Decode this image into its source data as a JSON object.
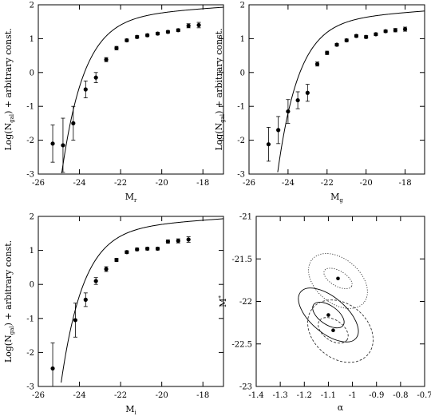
{
  "chart_data": [
    {
      "type": "scatter",
      "panel": "Mr",
      "xlabel_main": "M",
      "xlabel_sub": "r",
      "ylabel_pre": "Log(N",
      "ylabel_sub": "gal",
      "ylabel_post": ") + arbitrary const.",
      "xlim": [
        -26,
        -17
      ],
      "ylim": [
        -3,
        2
      ],
      "xticks": [
        -26,
        -24,
        -22,
        -20,
        -18
      ],
      "yticks": [
        -3,
        -2,
        -1,
        0,
        1,
        2
      ],
      "points": [
        {
          "x": -25.3,
          "y": -2.1,
          "err": 0.55
        },
        {
          "x": -24.8,
          "y": -2.15,
          "err": 0.8
        },
        {
          "x": -24.3,
          "y": -1.5,
          "err": 0.5
        },
        {
          "x": -23.7,
          "y": -0.5,
          "err": 0.25
        },
        {
          "x": -23.2,
          "y": -0.15,
          "err": 0.15
        },
        {
          "x": -22.7,
          "y": 0.38,
          "err": 0.06
        },
        {
          "x": -22.2,
          "y": 0.72,
          "err": 0.05
        },
        {
          "x": -21.7,
          "y": 0.95,
          "err": 0.04
        },
        {
          "x": -21.2,
          "y": 1.05,
          "err": 0.04
        },
        {
          "x": -20.7,
          "y": 1.1,
          "err": 0.04
        },
        {
          "x": -20.2,
          "y": 1.15,
          "err": 0.04
        },
        {
          "x": -19.7,
          "y": 1.2,
          "err": 0.04
        },
        {
          "x": -19.2,
          "y": 1.25,
          "err": 0.04
        },
        {
          "x": -18.7,
          "y": 1.38,
          "err": 0.06
        },
        {
          "x": -18.2,
          "y": 1.4,
          "err": 0.08
        }
      ],
      "fit": {
        "mstar": -22.3,
        "alpha": -1.1,
        "norm": 1.72
      }
    },
    {
      "type": "scatter",
      "panel": "Mg",
      "xlabel_main": "M",
      "xlabel_sub": "g",
      "ylabel_pre": "Log(N",
      "ylabel_sub": "gal",
      "ylabel_post": ") + arbitrary const.",
      "xlim": [
        -26,
        -17
      ],
      "ylim": [
        -3,
        2
      ],
      "xticks": [
        -26,
        -24,
        -22,
        -20,
        -18
      ],
      "yticks": [
        -3,
        -2,
        -1,
        0,
        1,
        2
      ],
      "points": [
        {
          "x": -25.0,
          "y": -2.12,
          "err": 0.5
        },
        {
          "x": -24.5,
          "y": -1.7,
          "err": 0.4
        },
        {
          "x": -24.0,
          "y": -1.15,
          "err": 0.35
        },
        {
          "x": -23.5,
          "y": -0.82,
          "err": 0.25
        },
        {
          "x": -23.0,
          "y": -0.6,
          "err": 0.25
        },
        {
          "x": -22.5,
          "y": 0.25,
          "err": 0.06
        },
        {
          "x": -22.0,
          "y": 0.58,
          "err": 0.05
        },
        {
          "x": -21.5,
          "y": 0.82,
          "err": 0.04
        },
        {
          "x": -21.0,
          "y": 0.95,
          "err": 0.04
        },
        {
          "x": -20.5,
          "y": 1.08,
          "err": 0.04
        },
        {
          "x": -20.0,
          "y": 1.05,
          "err": 0.04
        },
        {
          "x": -19.5,
          "y": 1.13,
          "err": 0.04
        },
        {
          "x": -19.0,
          "y": 1.22,
          "err": 0.04
        },
        {
          "x": -18.5,
          "y": 1.25,
          "err": 0.05
        },
        {
          "x": -18.0,
          "y": 1.28,
          "err": 0.06
        }
      ],
      "fit": {
        "mstar": -22.0,
        "alpha": -1.1,
        "norm": 1.62
      }
    },
    {
      "type": "scatter",
      "panel": "Mi",
      "xlabel_main": "M",
      "xlabel_sub": "i",
      "ylabel_pre": "Log(N",
      "ylabel_sub": "gal",
      "ylabel_post": ") + arbitrary const.",
      "xlim": [
        -26,
        -17
      ],
      "ylim": [
        -3,
        2
      ],
      "xticks": [
        -26,
        -24,
        -22,
        -20,
        -18
      ],
      "yticks": [
        -3,
        -2,
        -1,
        0,
        1,
        2
      ],
      "points": [
        {
          "x": -25.3,
          "y": -2.47,
          "err": 0.75
        },
        {
          "x": -24.2,
          "y": -1.05,
          "err": 0.5
        },
        {
          "x": -23.7,
          "y": -0.45,
          "err": 0.2
        },
        {
          "x": -23.2,
          "y": 0.1,
          "err": 0.1
        },
        {
          "x": -22.7,
          "y": 0.45,
          "err": 0.07
        },
        {
          "x": -22.2,
          "y": 0.72,
          "err": 0.05
        },
        {
          "x": -21.7,
          "y": 0.95,
          "err": 0.04
        },
        {
          "x": -21.2,
          "y": 1.03,
          "err": 0.04
        },
        {
          "x": -20.7,
          "y": 1.05,
          "err": 0.04
        },
        {
          "x": -20.2,
          "y": 1.05,
          "err": 0.04
        },
        {
          "x": -19.7,
          "y": 1.26,
          "err": 0.05
        },
        {
          "x": -19.2,
          "y": 1.28,
          "err": 0.06
        },
        {
          "x": -18.7,
          "y": 1.32,
          "err": 0.08
        }
      ],
      "fit": {
        "mstar": -22.35,
        "alpha": -1.1,
        "norm": 1.72
      }
    },
    {
      "type": "contour",
      "panel": "alpha-mstar",
      "xlabel": "α",
      "ylabel_main": "M",
      "ylabel_sup": "*",
      "xlim": [
        -1.4,
        -0.7
      ],
      "ylim": [
        -23,
        -21
      ],
      "xticks": [
        -1.4,
        -1.3,
        -1.2,
        -1.1,
        -1.0,
        -0.9,
        -0.8,
        -0.7
      ],
      "xticklabels": [
        "-1.4",
        "-1.3",
        "-1.2",
        "-1.1",
        "-1",
        "-0.9",
        "-0.8",
        "-0.7"
      ],
      "yticks": [
        -23,
        -22.5,
        -22,
        -21.5,
        -21
      ],
      "yticklabels": [
        "-23",
        "-22.5",
        "-22",
        "-21.5",
        "-21"
      ],
      "best_fits": [
        {
          "alpha": -1.06,
          "mstar": -21.73
        },
        {
          "alpha": -1.1,
          "mstar": -22.16
        },
        {
          "alpha": -1.08,
          "mstar": -22.34
        }
      ],
      "contours": [
        {
          "cx": -1.06,
          "cy": -21.73,
          "a": 0.065,
          "b": 0.09,
          "rot": 30,
          "style": "dotted"
        },
        {
          "cx": -1.06,
          "cy": -21.76,
          "a": 0.14,
          "b": 0.26,
          "rot": 40,
          "style": "dotted"
        },
        {
          "cx": -1.1,
          "cy": -22.16,
          "a": 0.075,
          "b": 0.11,
          "rot": 35,
          "style": "solid"
        },
        {
          "cx": -1.1,
          "cy": -22.16,
          "a": 0.15,
          "b": 0.21,
          "rot": 40,
          "style": "solid"
        },
        {
          "cx": -1.08,
          "cy": -22.34,
          "a": 0.07,
          "b": 0.12,
          "rot": 35,
          "style": "dashed"
        },
        {
          "cx": -1.05,
          "cy": -22.35,
          "a": 0.15,
          "b": 0.32,
          "rot": 40,
          "style": "dashed"
        }
      ]
    }
  ]
}
